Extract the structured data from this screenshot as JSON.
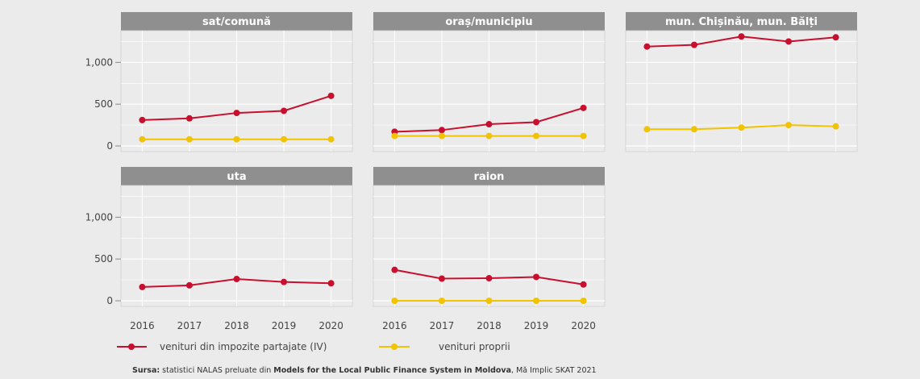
{
  "chart_data": {
    "type": "line",
    "x": [
      "2016",
      "2017",
      "2018",
      "2019",
      "2020"
    ],
    "y_ticks": [
      "0",
      "500",
      "1,000"
    ],
    "ylim": [
      0,
      1380
    ],
    "grid": true,
    "legend_position": "bottom-left",
    "colors": {
      "panel_bg": "#ebebeb",
      "strip_bg": "#8f8f8f",
      "grid": "#ffffff",
      "series_shared": "#c8102e",
      "series_own": "#f2c300"
    },
    "series": [
      {
        "name": "venituri din impozite partajate (IV)",
        "color": "#c8102e"
      },
      {
        "name": "venituri proprii",
        "color": "#f2c300"
      }
    ],
    "panels": [
      {
        "title": "sat/comună",
        "values": [
          [
            310,
            330,
            395,
            420,
            600
          ],
          [
            80,
            80,
            80,
            80,
            80
          ]
        ]
      },
      {
        "title": "oraș/municipiu",
        "values": [
          [
            170,
            190,
            260,
            285,
            455
          ],
          [
            120,
            120,
            120,
            120,
            120
          ]
        ]
      },
      {
        "title": "mun. Chișinău, mun. Bălți",
        "values": [
          [
            1190,
            1210,
            1310,
            1250,
            1300
          ],
          [
            200,
            200,
            220,
            250,
            235
          ]
        ]
      },
      {
        "title": "uta",
        "values": [
          [
            165,
            185,
            260,
            225,
            210
          ],
          []
        ]
      },
      {
        "title": "raion",
        "values": [
          [
            370,
            265,
            270,
            285,
            195
          ],
          [
            0,
            0,
            0,
            0,
            0
          ]
        ]
      }
    ]
  },
  "source": {
    "label": "Sursa:",
    "text_before": " statistici NALAS preluate din ",
    "bold_title": "Models for the Local Public Finance System in Moldova",
    "text_after": ", Mă Implic SKAT 2021"
  }
}
